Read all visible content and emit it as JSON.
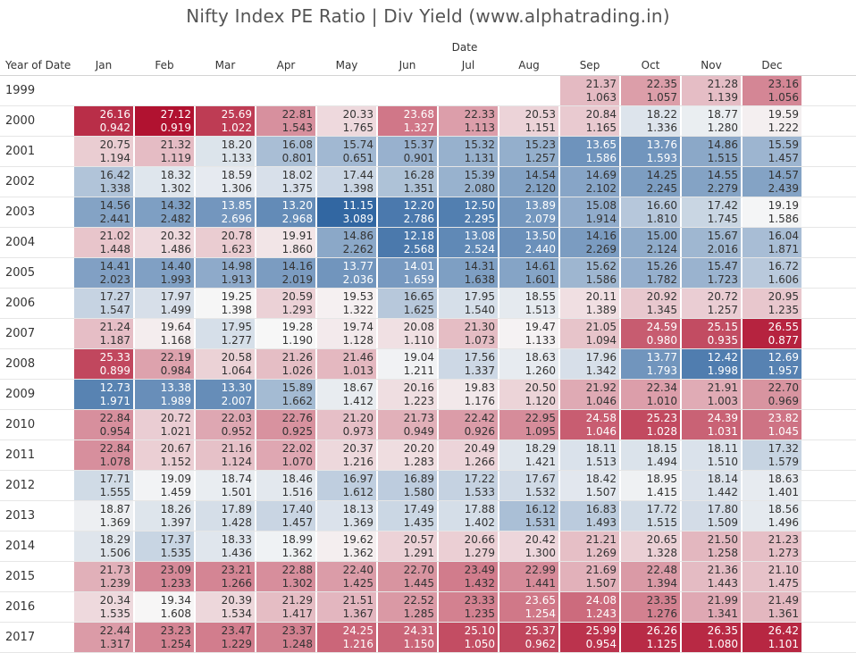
{
  "title": "Nifty Index PE Ratio | Div Yield (www.alphatrading.in)",
  "column_header": "Date",
  "row_header": "Year of Date",
  "chart_data": {
    "type": "heatmap",
    "title": "Nifty Index PE Ratio | Div Yield (www.alphatrading.in)",
    "xlabel": "Date",
    "ylabel": "Year of Date",
    "months": [
      "Jan",
      "Feb",
      "Mar",
      "Apr",
      "May",
      "Jun",
      "Jul",
      "Aug",
      "Sep",
      "Oct",
      "Nov",
      "Dec"
    ],
    "years": [
      "1999",
      "2000",
      "2001",
      "2002",
      "2003",
      "2004",
      "2005",
      "2006",
      "2007",
      "2008",
      "2009",
      "2010",
      "2011",
      "2012",
      "2013",
      "2014",
      "2015",
      "2016",
      "2017"
    ],
    "color_scale": {
      "low": "#2e64a0",
      "mid": "#f7f7f7",
      "high": "#b0102e",
      "domain": [
        11.0,
        19.3,
        27.2
      ]
    },
    "pe": [
      [
        null,
        null,
        null,
        null,
        null,
        null,
        null,
        null,
        21.37,
        22.35,
        21.28,
        23.16
      ],
      [
        26.16,
        27.12,
        25.69,
        22.81,
        20.33,
        23.68,
        22.33,
        20.53,
        20.84,
        18.22,
        18.77,
        19.59
      ],
      [
        20.75,
        21.32,
        18.2,
        16.08,
        15.74,
        15.37,
        15.32,
        15.23,
        13.65,
        13.76,
        14.86,
        15.59
      ],
      [
        16.42,
        18.32,
        18.59,
        18.02,
        17.44,
        16.28,
        15.39,
        14.54,
        14.69,
        14.25,
        14.55,
        14.57
      ],
      [
        14.56,
        14.32,
        13.85,
        13.2,
        11.15,
        12.2,
        12.5,
        13.89,
        15.08,
        16.6,
        17.42,
        19.19
      ],
      [
        21.02,
        20.32,
        20.78,
        19.91,
        14.86,
        12.18,
        13.08,
        13.5,
        14.16,
        15.0,
        15.67,
        16.04
      ],
      [
        14.41,
        14.4,
        14.98,
        14.16,
        13.77,
        14.01,
        14.31,
        14.61,
        15.62,
        15.26,
        15.47,
        16.72
      ],
      [
        17.27,
        17.97,
        19.25,
        20.59,
        19.53,
        16.65,
        17.95,
        18.55,
        20.11,
        20.92,
        20.72,
        20.95
      ],
      [
        21.24,
        19.64,
        17.95,
        19.28,
        19.74,
        20.08,
        21.3,
        19.47,
        21.05,
        24.59,
        25.15,
        26.55
      ],
      [
        25.33,
        22.19,
        20.58,
        21.26,
        21.46,
        19.04,
        17.56,
        18.63,
        17.96,
        13.77,
        12.42,
        12.69
      ],
      [
        12.73,
        13.38,
        13.3,
        15.89,
        18.67,
        20.16,
        19.83,
        20.5,
        21.92,
        22.34,
        21.91,
        22.7
      ],
      [
        22.84,
        20.72,
        22.03,
        22.76,
        21.2,
        21.73,
        22.42,
        22.95,
        24.58,
        25.23,
        24.39,
        23.82
      ],
      [
        22.84,
        20.67,
        21.16,
        22.02,
        20.37,
        20.2,
        20.49,
        18.29,
        18.11,
        18.15,
        18.11,
        17.32
      ],
      [
        17.71,
        19.09,
        18.74,
        18.46,
        16.97,
        16.89,
        17.22,
        17.67,
        18.42,
        18.95,
        18.14,
        18.63
      ],
      [
        18.87,
        18.26,
        17.89,
        17.4,
        18.13,
        17.49,
        17.88,
        16.12,
        16.83,
        17.72,
        17.8,
        18.56
      ],
      [
        18.29,
        17.37,
        18.33,
        18.99,
        19.62,
        20.57,
        20.66,
        20.42,
        21.21,
        20.65,
        21.5,
        21.23
      ],
      [
        21.73,
        23.09,
        23.21,
        22.88,
        22.4,
        22.7,
        23.49,
        22.99,
        21.69,
        22.48,
        21.36,
        21.1
      ],
      [
        20.34,
        19.34,
        20.39,
        21.29,
        21.51,
        22.52,
        23.33,
        23.65,
        24.08,
        23.35,
        21.99,
        21.49
      ],
      [
        22.44,
        23.23,
        23.47,
        23.37,
        24.25,
        24.31,
        25.1,
        25.37,
        25.99,
        26.26,
        26.35,
        26.42
      ]
    ],
    "div_yield": [
      [
        null,
        null,
        null,
        null,
        null,
        null,
        null,
        null,
        "1.063",
        "1.057",
        "1.139",
        "1.056"
      ],
      [
        "0.942",
        "0.919",
        "1.022",
        "1.543",
        "1.765",
        "1.327",
        "1.113",
        "1.151",
        "1.165",
        "1.336",
        "1.280",
        "1.222"
      ],
      [
        "1.194",
        "1.119",
        "1.133",
        "0.801",
        "0.651",
        "0.901",
        "1.131",
        "1.257",
        "1.586",
        "1.593",
        "1.515",
        "1.457"
      ],
      [
        "1.338",
        "1.302",
        "1.306",
        "1.375",
        "1.398",
        "1.351",
        "2.080",
        "2.120",
        "2.102",
        "2.245",
        "2.279",
        "2.439"
      ],
      [
        "2.441",
        "2.482",
        "2.696",
        "2.968",
        "3.089",
        "2.786",
        "2.295",
        "2.079",
        "1.914",
        "1.810",
        "1.745",
        "1.586"
      ],
      [
        "1.448",
        "1.486",
        "1.623",
        "1.860",
        "2.262",
        "2.568",
        "2.524",
        "2.440",
        "2.269",
        "2.124",
        "2.016",
        "1.871"
      ],
      [
        "2.023",
        "1.993",
        "1.913",
        "2.019",
        "2.036",
        "1.659",
        "1.638",
        "1.601",
        "1.586",
        "1.782",
        "1.723",
        "1.606"
      ],
      [
        "1.547",
        "1.499",
        "1.398",
        "1.293",
        "1.322",
        "1.625",
        "1.540",
        "1.513",
        "1.389",
        "1.345",
        "1.257",
        "1.235"
      ],
      [
        "1.187",
        "1.168",
        "1.277",
        "1.190",
        "1.128",
        "1.110",
        "1.073",
        "1.133",
        "1.094",
        "0.980",
        "0.935",
        "0.877"
      ],
      [
        "0.899",
        "0.984",
        "1.064",
        "1.026",
        "1.013",
        "1.211",
        "1.337",
        "1.260",
        "1.342",
        "1.793",
        "1.998",
        "1.957"
      ],
      [
        "1.971",
        "1.989",
        "2.007",
        "1.662",
        "1.412",
        "1.223",
        "1.176",
        "1.120",
        "1.046",
        "1.010",
        "1.003",
        "0.969"
      ],
      [
        "0.954",
        "1.021",
        "0.952",
        "0.925",
        "0.973",
        "0.949",
        "0.926",
        "1.095",
        "1.046",
        "1.028",
        "1.031",
        "1.045"
      ],
      [
        "1.078",
        "1.152",
        "1.124",
        "1.070",
        "1.216",
        "1.283",
        "1.266",
        "1.421",
        "1.513",
        "1.494",
        "1.510",
        "1.579"
      ],
      [
        "1.555",
        "1.459",
        "1.501",
        "1.516",
        "1.612",
        "1.580",
        "1.533",
        "1.532",
        "1.507",
        "1.415",
        "1.442",
        "1.401"
      ],
      [
        "1.369",
        "1.397",
        "1.428",
        "1.457",
        "1.369",
        "1.435",
        "1.402",
        "1.531",
        "1.493",
        "1.515",
        "1.509",
        "1.496"
      ],
      [
        "1.506",
        "1.535",
        "1.436",
        "1.362",
        "1.362",
        "1.291",
        "1.279",
        "1.300",
        "1.269",
        "1.328",
        "1.258",
        "1.273"
      ],
      [
        "1.239",
        "1.233",
        "1.266",
        "1.302",
        "1.425",
        "1.445",
        "1.432",
        "1.441",
        "1.507",
        "1.394",
        "1.443",
        "1.475"
      ],
      [
        "1.535",
        "1.608",
        "1.534",
        "1.417",
        "1.367",
        "1.285",
        "1.235",
        "1.254",
        "1.243",
        "1.276",
        "1.341",
        "1.361"
      ],
      [
        "1.317",
        "1.254",
        "1.229",
        "1.248",
        "1.216",
        "1.150",
        "1.050",
        "0.962",
        "0.954",
        "1.125",
        "1.080",
        "1.101"
      ]
    ]
  }
}
